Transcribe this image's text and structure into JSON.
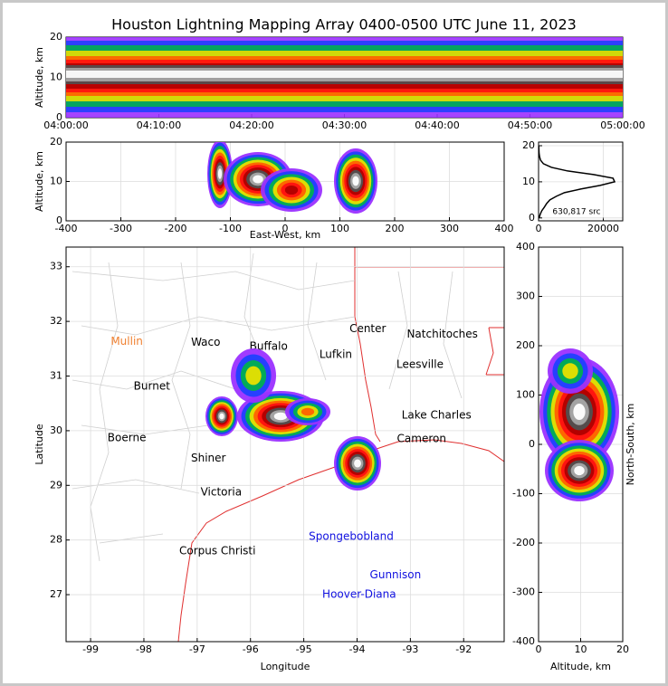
{
  "chart_data": [
    {
      "type": "heatmap",
      "title": "Houston Lightning Mapping Array 0400-0500 UTC June 11, 2023",
      "ylabel": "Altitude, km",
      "xlim": [
        0,
        60
      ],
      "xticks": [
        {
          "value": 0,
          "label": "04:00:00"
        },
        {
          "value": 10,
          "label": "04:10:00"
        },
        {
          "value": 20,
          "label": "04:20:00"
        },
        {
          "value": 30,
          "label": "04:30:00"
        },
        {
          "value": 40,
          "label": "04:40:00"
        },
        {
          "value": 50,
          "label": "04:50:00"
        },
        {
          "value": 60,
          "label": "05:00:00"
        }
      ],
      "ylim": [
        0,
        20
      ],
      "yticks": [
        0,
        10,
        20
      ],
      "grid": false
    },
    {
      "type": "heatmap",
      "xlabel": "East-West, km",
      "ylabel": "Altitude, km",
      "xlim": [
        -400,
        400
      ],
      "xticks": [
        -400,
        -300,
        -200,
        -100,
        0,
        100,
        200,
        300,
        400
      ],
      "ylim": [
        0,
        20
      ],
      "yticks": [
        0,
        10,
        20
      ],
      "grid": true
    },
    {
      "type": "line",
      "annotation": "630,817 src",
      "color": "#000000",
      "y": [
        0,
        1,
        2,
        3,
        4,
        5,
        6,
        7,
        8,
        9,
        10,
        11,
        12,
        13,
        14,
        15,
        16,
        17,
        18,
        19,
        20
      ],
      "values": [
        200,
        500,
        1000,
        1800,
        2500,
        3500,
        5500,
        8000,
        13000,
        19000,
        23500,
        23000,
        17000,
        9000,
        4000,
        1500,
        600,
        300,
        150,
        100,
        80
      ],
      "xlim": [
        0,
        26000
      ],
      "xticks": [
        0,
        20000
      ],
      "ylim": [
        -0.8,
        21
      ],
      "yticks": [
        0,
        10,
        20
      ],
      "grid": true
    },
    {
      "type": "map",
      "xlabel": "Longitude",
      "ylabel": "Latitude",
      "xlim": [
        -99.46,
        -91.24
      ],
      "xticks": [
        -99,
        -98,
        -97,
        -96,
        -95,
        -94,
        -93,
        -92
      ],
      "ylim": [
        26.14,
        33.36
      ],
      "yticks": [
        27,
        28,
        29,
        30,
        31,
        32,
        33
      ],
      "grid": true,
      "places": [
        {
          "name": "Mullin",
          "lon": -98.32,
          "lat": 31.63,
          "color": "#f08030"
        },
        {
          "name": "Waco",
          "lon": -96.84,
          "lat": 31.61,
          "color": "#000000"
        },
        {
          "name": "Buffalo",
          "lon": -95.66,
          "lat": 31.54,
          "color": "#000000"
        },
        {
          "name": "Lufkin",
          "lon": -94.4,
          "lat": 31.39,
          "color": "#000000"
        },
        {
          "name": "Center",
          "lon": -93.8,
          "lat": 31.86,
          "color": "#000000"
        },
        {
          "name": "Natchitoches",
          "lon": -92.4,
          "lat": 31.76,
          "color": "#000000"
        },
        {
          "name": "Leesville",
          "lon": -92.82,
          "lat": 31.21,
          "color": "#000000"
        },
        {
          "name": "Burnet",
          "lon": -97.85,
          "lat": 30.81,
          "color": "#000000"
        },
        {
          "name": "Lake Charles",
          "lon": -92.51,
          "lat": 30.28,
          "color": "#000000"
        },
        {
          "name": "Cameron",
          "lon": -92.79,
          "lat": 29.85,
          "color": "#000000"
        },
        {
          "name": "Boerne",
          "lon": -98.32,
          "lat": 29.87,
          "color": "#000000"
        },
        {
          "name": "Shiner",
          "lon": -96.79,
          "lat": 29.49,
          "color": "#000000"
        },
        {
          "name": "Victoria",
          "lon": -96.55,
          "lat": 28.87,
          "color": "#000000"
        },
        {
          "name": "Corpus Christi",
          "lon": -96.62,
          "lat": 27.8,
          "color": "#000000"
        },
        {
          "name": "Spongebobland",
          "lon": -94.11,
          "lat": 28.06,
          "color": "#1010e0"
        },
        {
          "name": "Gunnison",
          "lon": -93.28,
          "lat": 27.36,
          "color": "#1010e0"
        },
        {
          "name": "Hoover-Diana",
          "lon": -93.96,
          "lat": 27.0,
          "color": "#1010e0"
        }
      ]
    },
    {
      "type": "heatmap",
      "xlabel": "Altitude, km",
      "ylabel": "North-South, km",
      "xlim": [
        0,
        20
      ],
      "xticks": [
        0,
        10,
        20
      ],
      "ylim": [
        -400,
        400
      ],
      "yticks": [
        -400,
        -300,
        -200,
        -100,
        0,
        100,
        200,
        300,
        400
      ],
      "grid": true
    }
  ]
}
